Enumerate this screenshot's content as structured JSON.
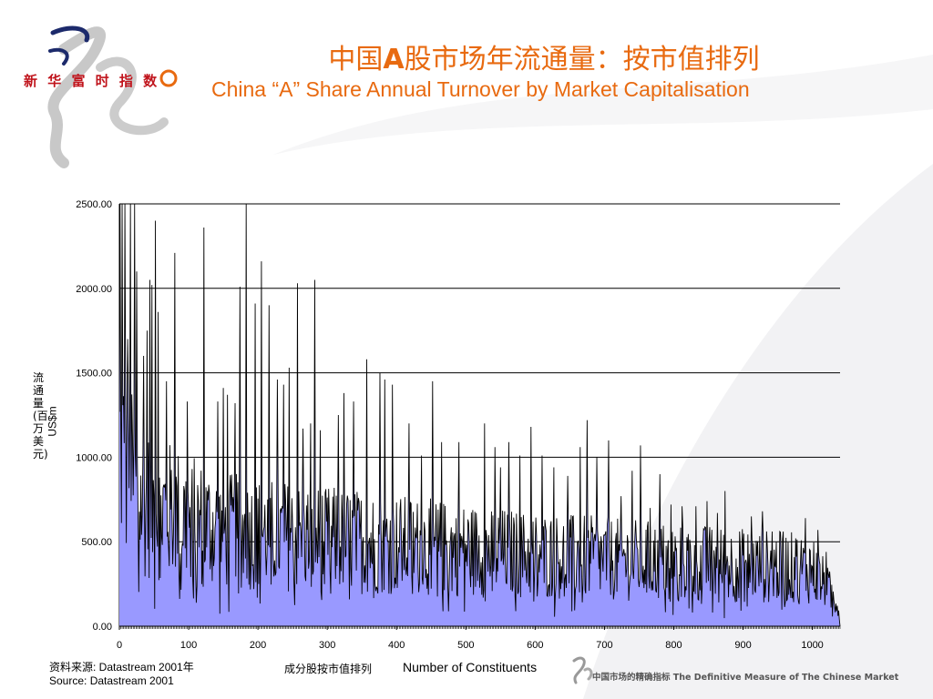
{
  "header": {
    "title_zh_before": "中国",
    "title_zh_bold": "A",
    "title_zh_after": "股市场年流通量：按市值排列",
    "title_en": "China “A” Share Annual Turnover by Market Capitalisation"
  },
  "logo": {
    "text": "新 华 富 时 指 数"
  },
  "footer": {
    "source_zh": "资料来源: Datastream 2001年",
    "source_en": "Source: Datastream 2001",
    "tagline": "中国市场的精确指标 The Definitive Measure of The Chinese Market"
  },
  "colors": {
    "accent": "#e86a10",
    "fill": "#9999ff",
    "line": "#000000"
  },
  "chart_data": {
    "type": "area",
    "title": "",
    "xlabel_zh": "成分股按市值排列",
    "xlabel": "Number of Constituents",
    "ylabel_zh": "流通量(百万美元)",
    "ylabel": "US$m",
    "xlim": [
      0,
      1040
    ],
    "ylim": [
      0,
      2500
    ],
    "x_ticks": [
      0,
      100,
      200,
      300,
      400,
      500,
      600,
      700,
      800,
      900,
      1000
    ],
    "y_ticks": [
      "0.00",
      "500.00",
      "1000.00",
      "1500.00",
      "2000.00",
      "2500.00"
    ],
    "grid": true,
    "legend": "none",
    "series": [
      {
        "peaks": [
          [
            1,
            2500
          ],
          [
            4,
            2500
          ],
          [
            8,
            2500
          ],
          [
            12,
            1700
          ],
          [
            16,
            2500
          ],
          [
            22,
            2500
          ],
          [
            25,
            2100
          ],
          [
            35,
            1600
          ],
          [
            40,
            1750
          ],
          [
            44,
            2050
          ],
          [
            47,
            2020
          ],
          [
            52,
            2400
          ],
          [
            56,
            1860
          ],
          [
            68,
            1450
          ],
          [
            80,
            2210
          ],
          [
            98,
            1330
          ],
          [
            122,
            2360
          ],
          [
            142,
            1330
          ],
          [
            150,
            1410
          ],
          [
            156,
            1370
          ],
          [
            167,
            1320
          ],
          [
            174,
            2010
          ],
          [
            183,
            2500
          ],
          [
            196,
            1910
          ],
          [
            205,
            2160
          ],
          [
            216,
            1900
          ],
          [
            228,
            1460
          ],
          [
            237,
            1430
          ],
          [
            245,
            1530
          ],
          [
            257,
            2030
          ],
          [
            265,
            1170
          ],
          [
            276,
            1200
          ],
          [
            282,
            2050
          ],
          [
            290,
            1160
          ],
          [
            316,
            1250
          ],
          [
            324,
            1380
          ],
          [
            338,
            1330
          ],
          [
            357,
            1580
          ],
          [
            376,
            1500
          ],
          [
            383,
            1460
          ],
          [
            394,
            1430
          ],
          [
            418,
            1200
          ],
          [
            436,
            1010
          ],
          [
            452,
            1450
          ],
          [
            465,
            1090
          ],
          [
            490,
            1090
          ],
          [
            527,
            1200
          ],
          [
            542,
            1060
          ],
          [
            550,
            940
          ],
          [
            562,
            1090
          ],
          [
            578,
            1010
          ],
          [
            594,
            1180
          ],
          [
            610,
            1010
          ],
          [
            627,
            940
          ],
          [
            647,
            890
          ],
          [
            665,
            1060
          ],
          [
            675,
            1220
          ],
          [
            689,
            1000
          ],
          [
            706,
            1100
          ],
          [
            724,
            770
          ],
          [
            740,
            920
          ],
          [
            752,
            1070
          ],
          [
            766,
            700
          ],
          [
            780,
            900
          ],
          [
            796,
            720
          ],
          [
            812,
            710
          ],
          [
            832,
            710
          ],
          [
            848,
            740
          ],
          [
            863,
            670
          ],
          [
            874,
            800
          ],
          [
            895,
            560
          ],
          [
            912,
            650
          ],
          [
            928,
            680
          ],
          [
            942,
            560
          ],
          [
            958,
            560
          ],
          [
            976,
            520
          ],
          [
            990,
            640
          ],
          [
            1008,
            570
          ],
          [
            1020,
            440
          ]
        ]
      }
    ]
  }
}
